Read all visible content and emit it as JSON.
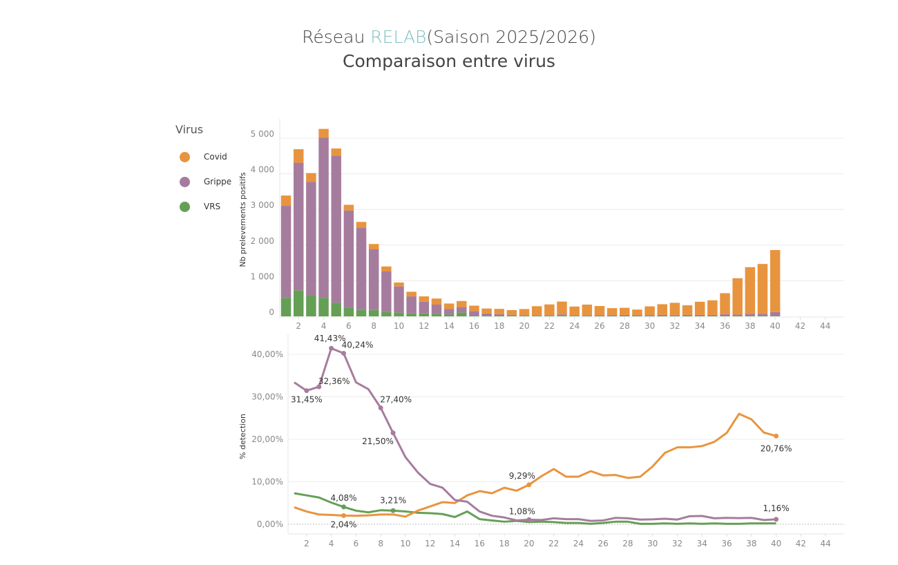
{
  "header": {
    "title_prefix": "Réseau",
    "title_accent": "RELAB",
    "title_suffix": "(Saison 2025/2026)",
    "subtitle": "Comparaison entre virus"
  },
  "legend": {
    "title": "Virus",
    "items": [
      {
        "label": "Covid",
        "color": "#e8943f"
      },
      {
        "label": "Grippe",
        "color": "#a67c9e"
      },
      {
        "label": "VRS",
        "color": "#659f56"
      }
    ]
  },
  "chart_data": [
    {
      "type": "bar",
      "stacked": true,
      "ylabel": "Nb prelevements positifs",
      "xlabel": "",
      "ylim": [
        0,
        5500
      ],
      "yticks": [
        0,
        1000,
        2000,
        3000,
        4000,
        5000
      ],
      "xlim": [
        0.5,
        45.5
      ],
      "xticks": [
        2,
        4,
        6,
        8,
        10,
        12,
        14,
        16,
        18,
        20,
        22,
        24,
        26,
        28,
        30,
        32,
        34,
        36,
        38,
        40,
        42,
        44
      ],
      "grid": true,
      "x": [
        1,
        2,
        3,
        4,
        5,
        6,
        7,
        8,
        9,
        10,
        11,
        12,
        13,
        14,
        15,
        16,
        17,
        18,
        19,
        20,
        21,
        22,
        23,
        24,
        25,
        26,
        27,
        28,
        29,
        30,
        31,
        32,
        33,
        34,
        35,
        36,
        37,
        38,
        39,
        40
      ],
      "series": [
        {
          "name": "VRS",
          "color": "#659f56",
          "values": [
            520,
            730,
            590,
            520,
            380,
            240,
            180,
            180,
            130,
            110,
            80,
            80,
            70,
            50,
            110,
            30,
            20,
            20,
            15,
            15,
            15,
            15,
            15,
            15,
            10,
            10,
            10,
            10,
            10,
            10,
            10,
            10,
            10,
            10,
            10,
            10,
            10,
            10,
            10,
            10
          ]
        },
        {
          "name": "Grippe",
          "color": "#a67c9e",
          "values": [
            2580,
            3580,
            3180,
            4490,
            4130,
            2730,
            2300,
            1700,
            1130,
            730,
            480,
            330,
            260,
            160,
            150,
            120,
            60,
            40,
            30,
            20,
            20,
            20,
            40,
            20,
            10,
            20,
            20,
            30,
            20,
            20,
            30,
            20,
            30,
            30,
            30,
            50,
            40,
            60,
            60,
            110
          ]
        },
        {
          "name": "Covid",
          "color": "#e8943f",
          "values": [
            290,
            380,
            250,
            250,
            200,
            160,
            170,
            150,
            140,
            110,
            130,
            150,
            170,
            150,
            170,
            150,
            140,
            150,
            130,
            170,
            250,
            300,
            360,
            240,
            310,
            260,
            200,
            200,
            160,
            250,
            300,
            350,
            270,
            370,
            410,
            590,
            1020,
            1310,
            1400,
            1740
          ]
        }
      ]
    },
    {
      "type": "line",
      "ylabel": "% detection",
      "xlabel": "",
      "ylim": [
        -2,
        43
      ],
      "yticks": [
        0,
        10,
        20,
        30,
        40
      ],
      "ytick_labels": [
        "0,00%",
        "10,00%",
        "20,00%",
        "30,00%",
        "40,00%"
      ],
      "xlim": [
        0.5,
        45.5
      ],
      "xticks": [
        2,
        4,
        6,
        8,
        10,
        12,
        14,
        16,
        18,
        20,
        22,
        24,
        26,
        28,
        30,
        32,
        34,
        36,
        38,
        40,
        42,
        44
      ],
      "grid": true,
      "x": [
        1,
        2,
        3,
        4,
        5,
        6,
        7,
        8,
        9,
        10,
        11,
        12,
        13,
        14,
        15,
        16,
        17,
        18,
        19,
        20,
        21,
        22,
        23,
        24,
        25,
        26,
        27,
        28,
        29,
        30,
        31,
        32,
        33,
        34,
        35,
        36,
        37,
        38,
        39,
        40
      ],
      "series": [
        {
          "name": "Grippe",
          "color": "#a67c9e",
          "values": [
            33.4,
            31.45,
            32.36,
            41.43,
            40.24,
            33.4,
            31.8,
            27.4,
            21.5,
            15.8,
            12.2,
            9.5,
            8.6,
            5.7,
            5.3,
            3.0,
            2.0,
            1.6,
            0.9,
            1.08,
            1.0,
            1.4,
            1.2,
            1.2,
            0.8,
            0.9,
            1.5,
            1.4,
            1.1,
            1.15,
            1.3,
            1.1,
            1.9,
            1.95,
            1.4,
            1.5,
            1.45,
            1.5,
            1.0,
            1.16
          ],
          "annotations": [
            {
              "x": 2,
              "label": "31,45%"
            },
            {
              "x": 3,
              "label": "32,36%"
            },
            {
              "x": 4,
              "label": "41,43%"
            },
            {
              "x": 5,
              "label": "40,24%"
            },
            {
              "x": 8,
              "label": "27,40%"
            },
            {
              "x": 9,
              "label": "21,50%"
            },
            {
              "x": 20,
              "label": "1,08%"
            },
            {
              "x": 40,
              "label": "1,16%"
            }
          ]
        },
        {
          "name": "Covid",
          "color": "#e8943f",
          "values": [
            4.0,
            3.0,
            2.3,
            2.2,
            2.04,
            2.0,
            2.1,
            2.3,
            2.3,
            1.8,
            3.2,
            4.2,
            5.2,
            5.0,
            6.8,
            7.8,
            7.3,
            8.6,
            7.9,
            9.29,
            11.3,
            13.0,
            11.2,
            11.2,
            12.5,
            11.5,
            11.6,
            10.9,
            11.2,
            13.6,
            16.8,
            18.1,
            18.1,
            18.4,
            19.4,
            21.5,
            26.0,
            24.7,
            21.6,
            20.76
          ],
          "annotations": [
            {
              "x": 5,
              "label": "2,04%"
            },
            {
              "x": 20,
              "label": "9,29%"
            },
            {
              "x": 40,
              "label": "20,76%"
            }
          ]
        },
        {
          "name": "VRS",
          "color": "#659f56",
          "values": [
            7.3,
            6.8,
            6.3,
            5.1,
            4.08,
            3.2,
            2.8,
            3.3,
            3.21,
            3.0,
            2.7,
            2.6,
            2.4,
            1.7,
            3.0,
            1.2,
            0.9,
            0.6,
            0.8,
            0.5,
            0.6,
            0.5,
            0.3,
            0.3,
            0.1,
            0.3,
            0.6,
            0.6,
            0.1,
            0.1,
            0.2,
            0.1,
            0.2,
            0.1,
            0.2,
            0.1,
            0.1,
            0.2,
            0.2,
            0.2
          ],
          "annotations": [
            {
              "x": 5,
              "label": "4,08%"
            },
            {
              "x": 9,
              "label": "3,21%"
            }
          ]
        }
      ]
    }
  ]
}
